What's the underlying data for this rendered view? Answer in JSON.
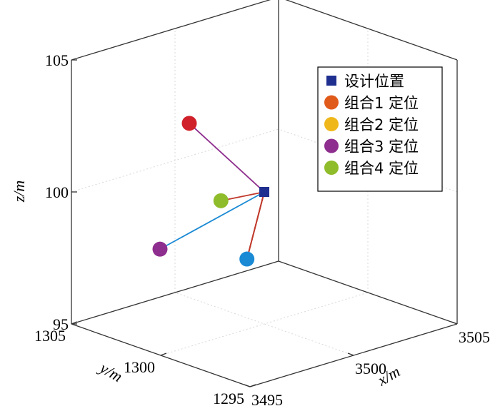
{
  "chart_data": {
    "type": "scatter3d",
    "title": "",
    "xlabel": "x/m",
    "ylabel": "y/m",
    "zlabel": "z/m",
    "xlim": [
      3495,
      3505
    ],
    "ylim": [
      1295,
      1305
    ],
    "zlim": [
      95,
      105
    ],
    "xticks": [
      "3495",
      "3500",
      "3505"
    ],
    "yticks": [
      "1295",
      "1300",
      "1305"
    ],
    "zticks": [
      "95",
      "100",
      "105"
    ],
    "grid": true,
    "legend_position": "top-right",
    "design_point": {
      "name": "设计位置",
      "x": 3500.0,
      "y": 1300.0,
      "z": 100.0,
      "color": "#1f2f8f"
    },
    "series": [
      {
        "name": "组合1 定位",
        "color": "#e05a1a",
        "line_color": "#c0392b",
        "x": 3498.3,
        "y": 1299.0,
        "z": 98.1,
        "show_point": false
      },
      {
        "name": "组合2 定位",
        "color": "#f0b71a",
        "line_color": "#c0392b",
        "x": 3498.3,
        "y": 1299.0,
        "z": 98.1,
        "show_point": false
      },
      {
        "name": "组合3 定位",
        "color": "#8e2e8e",
        "line_color": "#8e2e8e",
        "x": 3500.0,
        "y": 1304.2,
        "z": 101.6,
        "show_point": true,
        "point_color": "#d0202a"
      },
      {
        "name": "组合4 定位",
        "color": "#8fbc2a",
        "line_color": "#1a8ad4",
        "x": 3496.0,
        "y": 1301.2,
        "z": 98.5,
        "show_point": true,
        "point_color": "#8e2e8e"
      }
    ],
    "extra_points": [
      {
        "color": "#8fbc2a",
        "line_color": "#c0392b",
        "x": 3499.2,
        "y": 1301.5,
        "z": 99.5
      },
      {
        "color": "#1a8ad4",
        "line_color": "#c0392b",
        "x": 3498.3,
        "y": 1299.0,
        "z": 98.1
      }
    ]
  }
}
